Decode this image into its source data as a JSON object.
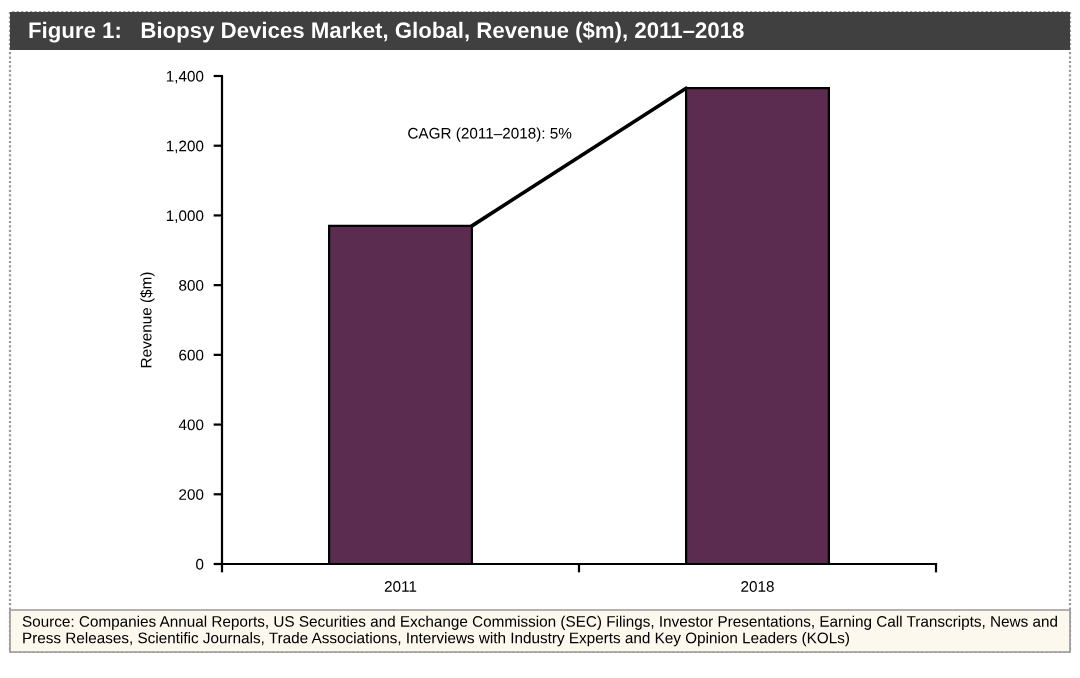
{
  "chart_data": {
    "type": "bar",
    "title": "Figure 1:   Biopsy Devices Market, Global, Revenue ($m), 2011–2018",
    "ylabel": "Revenue ($m)",
    "categories": [
      "2011",
      "2018"
    ],
    "values": [
      970,
      1365
    ],
    "color": "#5b2c4f",
    "ylim": [
      0,
      1400
    ],
    "yticks": [
      0,
      {
        "value": 200,
        "label": "200"
      },
      {
        "value": 400,
        "label": "400"
      },
      {
        "value": 600,
        "label": "600"
      },
      {
        "value": 800,
        "label": "800"
      },
      {
        "value": 1000,
        "label": "1,000"
      },
      {
        "value": 1200,
        "label": "1,200"
      },
      {
        "value": 1400,
        "label": "1,400"
      }
    ],
    "grid": false,
    "legend": false,
    "annotations": [
      "CAGR (2011–2018): 5%",
      "Source: Companies Annual Reports, US Securities and Exchange Commission (SEC) Filings, Investor Presentations, Earning Call Transcripts, News and Press Releases, Scientific Journals, Trade Associations, Interviews with Industry Experts and Key Opinion Leaders (KOLs)"
    ]
  }
}
